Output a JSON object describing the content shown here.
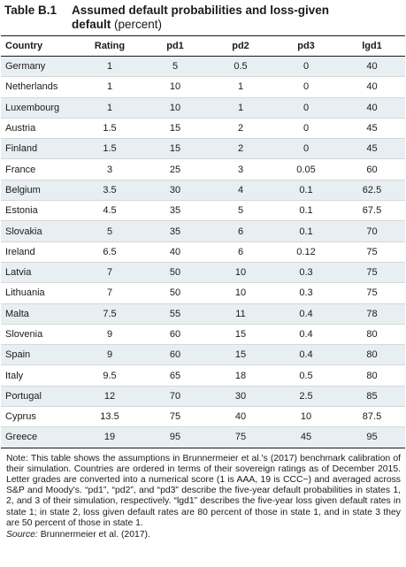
{
  "title": {
    "label": "Table B.1",
    "main_line1": "Assumed default probabilities and loss-given",
    "main_line2": "default",
    "sub": "(percent)"
  },
  "columns": [
    "Country",
    "Rating",
    "pd1",
    "pd2",
    "pd3",
    "lgd1"
  ],
  "rows": [
    {
      "country": "Germany",
      "rating": "1",
      "pd1": "5",
      "pd2": "0.5",
      "pd3": "0",
      "lgd1": "40"
    },
    {
      "country": "Netherlands",
      "rating": "1",
      "pd1": "10",
      "pd2": "1",
      "pd3": "0",
      "lgd1": "40"
    },
    {
      "country": "Luxembourg",
      "rating": "1",
      "pd1": "10",
      "pd2": "1",
      "pd3": "0",
      "lgd1": "40"
    },
    {
      "country": "Austria",
      "rating": "1.5",
      "pd1": "15",
      "pd2": "2",
      "pd3": "0",
      "lgd1": "45"
    },
    {
      "country": "Finland",
      "rating": "1.5",
      "pd1": "15",
      "pd2": "2",
      "pd3": "0",
      "lgd1": "45"
    },
    {
      "country": "France",
      "rating": "3",
      "pd1": "25",
      "pd2": "3",
      "pd3": "0.05",
      "lgd1": "60"
    },
    {
      "country": "Belgium",
      "rating": "3.5",
      "pd1": "30",
      "pd2": "4",
      "pd3": "0.1",
      "lgd1": "62.5"
    },
    {
      "country": "Estonia",
      "rating": "4.5",
      "pd1": "35",
      "pd2": "5",
      "pd3": "0.1",
      "lgd1": "67.5"
    },
    {
      "country": "Slovakia",
      "rating": "5",
      "pd1": "35",
      "pd2": "6",
      "pd3": "0.1",
      "lgd1": "70"
    },
    {
      "country": "Ireland",
      "rating": "6.5",
      "pd1": "40",
      "pd2": "6",
      "pd3": "0.12",
      "lgd1": "75"
    },
    {
      "country": "Latvia",
      "rating": "7",
      "pd1": "50",
      "pd2": "10",
      "pd3": "0.3",
      "lgd1": "75"
    },
    {
      "country": "Lithuania",
      "rating": "7",
      "pd1": "50",
      "pd2": "10",
      "pd3": "0.3",
      "lgd1": "75"
    },
    {
      "country": "Malta",
      "rating": "7.5",
      "pd1": "55",
      "pd2": "11",
      "pd3": "0.4",
      "lgd1": "78"
    },
    {
      "country": "Slovenia",
      "rating": "9",
      "pd1": "60",
      "pd2": "15",
      "pd3": "0.4",
      "lgd1": "80"
    },
    {
      "country": "Spain",
      "rating": "9",
      "pd1": "60",
      "pd2": "15",
      "pd3": "0.4",
      "lgd1": "80"
    },
    {
      "country": "Italy",
      "rating": "9.5",
      "pd1": "65",
      "pd2": "18",
      "pd3": "0.5",
      "lgd1": "80"
    },
    {
      "country": "Portugal",
      "rating": "12",
      "pd1": "70",
      "pd2": "30",
      "pd3": "2.5",
      "lgd1": "85"
    },
    {
      "country": "Cyprus",
      "rating": "13.5",
      "pd1": "75",
      "pd2": "40",
      "pd3": "10",
      "lgd1": "87.5"
    },
    {
      "country": "Greece",
      "rating": "19",
      "pd1": "95",
      "pd2": "75",
      "pd3": "45",
      "lgd1": "95"
    }
  ],
  "note": "Note: This table shows the assumptions in Brunnermeier et al.'s (2017) benchmark calibration of their simulation. Countries are ordered in terms of their sovereign ratings as of December 2015. Letter grades are converted into a numerical score (1 is AAA, 19 is CCC−) and averaged across S&P and Moody's. “pd1”, “pd2”, and “pd3” describe the five-year default probabilities in states 1, 2, and 3 of their simulation, respectively. “lgd1” describes the five-year loss given default rates in state 1; in state 2, loss given default rates are 80 percent of those in state 1, and in state 3 they are 50 percent of those in state 1.",
  "source": {
    "label": "Source:",
    "text": "Brunnermeier et al. (2017)."
  },
  "colors": {
    "row_shade": "#e8eff3",
    "rule": "#1a1a1a",
    "row_line": "#d7d7d7"
  }
}
